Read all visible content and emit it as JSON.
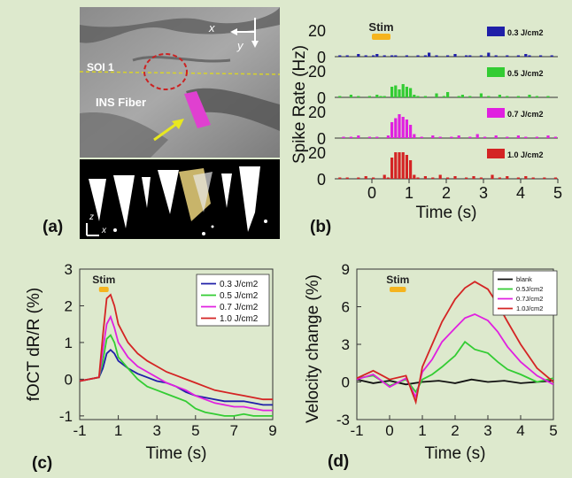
{
  "panels": {
    "a": {
      "label": "(a)",
      "soi_label": "SOI 1",
      "fiber_label": "INS Fiber",
      "axis_x": "x",
      "axis_y": "y",
      "axis_z": "z",
      "axis_x2": "x"
    },
    "b": {
      "label": "(b)"
    },
    "c": {
      "label": "(c)"
    },
    "d": {
      "label": "(d)"
    }
  },
  "colors": {
    "background": "#dde9cd",
    "stim": "#f5b41e",
    "c_series": [
      "#1f1fa8",
      "#33cc33",
      "#e020e0",
      "#d42424"
    ],
    "d_series": [
      "#111111",
      "#33cc33",
      "#e020e0",
      "#d42424"
    ],
    "b_series": [
      "#1f1fa8",
      "#33cc33",
      "#e020e0",
      "#d42424"
    ]
  },
  "chart_data": [
    {
      "id": "b",
      "type": "bar",
      "ylabel": "Spike Rate (Hz)",
      "xlabel": "Time (s)",
      "xlim": [
        -1,
        5
      ],
      "xticks": [
        0,
        1,
        2,
        3,
        4,
        5
      ],
      "stim_label": "Stim",
      "stim": [
        0,
        0.5
      ],
      "bin_width": 0.1,
      "subplots": [
        {
          "name": "0.3 J/cm2",
          "ylim": [
            0,
            20
          ],
          "yticks": [
            0,
            20
          ],
          "values": [
            0,
            1,
            0,
            1,
            0,
            0,
            2,
            0,
            1,
            0,
            1,
            2,
            0,
            1,
            0,
            1,
            1,
            0,
            0,
            1,
            0,
            0,
            1,
            0,
            1,
            3,
            0,
            1,
            0,
            0,
            1,
            0,
            2,
            0,
            0,
            1,
            1,
            0,
            0,
            1,
            0,
            3,
            0,
            1,
            0,
            0,
            1,
            0,
            0,
            1,
            0,
            2,
            1,
            0,
            0,
            1,
            0,
            0,
            1,
            0
          ]
        },
        {
          "name": "0.5 J/cm2",
          "ylim": [
            0,
            20
          ],
          "yticks": [
            0,
            20
          ],
          "values": [
            0,
            1,
            0,
            0,
            2,
            0,
            1,
            0,
            0,
            1,
            0,
            2,
            1,
            1,
            0,
            8,
            9,
            6,
            10,
            8,
            7,
            2,
            1,
            0,
            1,
            0,
            0,
            3,
            0,
            1,
            4,
            0,
            0,
            1,
            2,
            0,
            1,
            0,
            0,
            3,
            0,
            1,
            0,
            0,
            2,
            0,
            1,
            0,
            0,
            1,
            0,
            0,
            2,
            0,
            1,
            0,
            0,
            1,
            0,
            0
          ]
        },
        {
          "name": "0.7 J/cm2",
          "ylim": [
            0,
            20
          ],
          "yticks": [
            0,
            20
          ],
          "values": [
            0,
            0,
            1,
            0,
            1,
            0,
            2,
            0,
            0,
            1,
            0,
            1,
            0,
            0,
            2,
            12,
            15,
            18,
            16,
            14,
            10,
            3,
            0,
            1,
            0,
            0,
            2,
            0,
            1,
            0,
            0,
            1,
            0,
            2,
            0,
            0,
            1,
            0,
            3,
            0,
            1,
            0,
            0,
            2,
            0,
            0,
            1,
            0,
            0,
            2,
            0,
            1,
            0,
            0,
            1,
            0,
            0,
            2,
            0,
            1
          ]
        },
        {
          "name": "1.0 J/cm2",
          "ylim": [
            0,
            20
          ],
          "yticks": [
            0,
            20
          ],
          "values": [
            0,
            1,
            0,
            1,
            0,
            0,
            1,
            0,
            2,
            0,
            1,
            0,
            0,
            3,
            1,
            16,
            20,
            20,
            20,
            18,
            14,
            3,
            1,
            0,
            2,
            0,
            1,
            0,
            3,
            0,
            1,
            0,
            2,
            0,
            0,
            1,
            0,
            2,
            0,
            1,
            0,
            0,
            3,
            0,
            1,
            0,
            2,
            0,
            0,
            1,
            0,
            2,
            0,
            1,
            0,
            0,
            1,
            0,
            0,
            1
          ]
        }
      ]
    },
    {
      "id": "c",
      "type": "line",
      "ylabel": "fOCT dR/R (%)",
      "xlabel": "Time (s)",
      "xlim": [
        -1,
        9
      ],
      "ylim": [
        -1.1,
        3
      ],
      "xticks": [
        -1,
        1,
        3,
        5,
        7,
        9
      ],
      "yticks": [
        -1,
        0,
        1,
        2,
        3
      ],
      "stim_label": "Stim",
      "stim": [
        0,
        0.5
      ],
      "legend": "top-right",
      "series": [
        {
          "name": "0.3 J/cm2",
          "x": [
            -1,
            -0.5,
            0,
            0.2,
            0.4,
            0.6,
            0.8,
            1,
            1.5,
            2,
            2.5,
            3,
            3.5,
            4,
            4.5,
            5,
            5.5,
            6,
            6.5,
            7,
            7.5,
            8,
            8.5,
            9
          ],
          "y": [
            -0.05,
            0,
            0.05,
            0.3,
            0.7,
            0.8,
            0.7,
            0.5,
            0.3,
            0.15,
            0.05,
            -0.05,
            -0.1,
            -0.2,
            -0.35,
            -0.45,
            -0.5,
            -0.55,
            -0.6,
            -0.6,
            -0.6,
            -0.65,
            -0.7,
            -0.7
          ]
        },
        {
          "name": "0.5 J/cm2",
          "x": [
            -1,
            -0.5,
            0,
            0.2,
            0.4,
            0.6,
            0.8,
            1,
            1.5,
            2,
            2.5,
            3,
            3.5,
            4,
            4.5,
            5,
            5.5,
            6,
            6.5,
            7,
            7.5,
            8,
            8.5,
            9
          ],
          "y": [
            -0.05,
            0,
            0.05,
            0.5,
            1.1,
            1.2,
            1.0,
            0.6,
            0.3,
            0.0,
            -0.2,
            -0.3,
            -0.4,
            -0.5,
            -0.6,
            -0.8,
            -0.9,
            -0.95,
            -1.0,
            -1.0,
            -0.95,
            -1.0,
            -1.0,
            -1.0
          ]
        },
        {
          "name": "0.7 J/cm2",
          "x": [
            -1,
            -0.5,
            0,
            0.2,
            0.4,
            0.6,
            0.8,
            1,
            1.5,
            2,
            2.5,
            3,
            3.5,
            4,
            4.5,
            5,
            5.5,
            6,
            6.5,
            7,
            7.5,
            8,
            8.5,
            9
          ],
          "y": [
            -0.05,
            0,
            0.05,
            0.8,
            1.5,
            1.7,
            1.4,
            1.0,
            0.6,
            0.35,
            0.2,
            0.05,
            -0.1,
            -0.2,
            -0.3,
            -0.45,
            -0.55,
            -0.65,
            -0.7,
            -0.75,
            -0.75,
            -0.8,
            -0.85,
            -0.85
          ]
        },
        {
          "name": "1.0 J/cm2",
          "x": [
            -1,
            -0.5,
            0,
            0.2,
            0.4,
            0.6,
            0.8,
            1,
            1.5,
            2,
            2.5,
            3,
            3.5,
            4,
            4.5,
            5,
            5.5,
            6,
            6.5,
            7,
            7.5,
            8,
            8.5,
            9
          ],
          "y": [
            -0.05,
            0,
            0.05,
            1.2,
            2.2,
            2.3,
            2.0,
            1.5,
            1.0,
            0.7,
            0.5,
            0.35,
            0.2,
            0.1,
            0.0,
            -0.1,
            -0.2,
            -0.3,
            -0.35,
            -0.4,
            -0.45,
            -0.5,
            -0.55,
            -0.55
          ]
        }
      ]
    },
    {
      "id": "d",
      "type": "line",
      "ylabel": "Velocity change (%)",
      "xlabel": "Time (s)",
      "xlim": [
        -1,
        5
      ],
      "ylim": [
        -3,
        9
      ],
      "xticks": [
        -1,
        0,
        1,
        2,
        3,
        4,
        5
      ],
      "yticks": [
        -3,
        0,
        3,
        6,
        9
      ],
      "stim_label": "Stim",
      "stim": [
        0,
        0.5
      ],
      "legend": "top-right",
      "series": [
        {
          "name": "blank",
          "x": [
            -1,
            -0.5,
            0,
            0.5,
            1,
            1.5,
            2,
            2.5,
            3,
            3.5,
            4,
            4.5,
            5
          ],
          "y": [
            0.2,
            -0.1,
            0.1,
            -0.2,
            0,
            0.1,
            -0.1,
            0.2,
            0,
            0.1,
            -0.1,
            0,
            0.1
          ]
        },
        {
          "name": "0.5J/cm2",
          "x": [
            -1,
            -0.5,
            0,
            0.5,
            0.8,
            1,
            1.3,
            1.6,
            2,
            2.3,
            2.6,
            3,
            3.3,
            3.6,
            4,
            4.5,
            5
          ],
          "y": [
            0.3,
            0.5,
            -0.3,
            0.2,
            -0.8,
            0.2,
            0.6,
            1.2,
            2.1,
            3.2,
            2.6,
            2.3,
            1.6,
            1.0,
            0.6,
            0.0,
            0.3
          ]
        },
        {
          "name": "0.7J/cm2",
          "x": [
            -1,
            -0.5,
            0,
            0.5,
            0.8,
            1,
            1.3,
            1.6,
            2,
            2.3,
            2.6,
            3,
            3.3,
            3.6,
            4,
            4.5,
            5
          ],
          "y": [
            0.2,
            0.6,
            -0.4,
            0.3,
            -1.2,
            0.8,
            1.8,
            3.2,
            4.3,
            5.1,
            5.4,
            4.9,
            4.0,
            2.8,
            1.6,
            0.5,
            -0.2
          ]
        },
        {
          "name": "1.0J/cm2",
          "x": [
            -1,
            -0.5,
            0,
            0.5,
            0.8,
            1,
            1.3,
            1.6,
            2,
            2.3,
            2.6,
            3,
            3.3,
            3.6,
            4,
            4.5,
            5
          ],
          "y": [
            0.3,
            0.9,
            0.2,
            0.5,
            -1.6,
            1.2,
            3.0,
            4.8,
            6.6,
            7.5,
            8.0,
            7.4,
            6.2,
            4.8,
            3.0,
            1.1,
            0.0
          ]
        }
      ]
    }
  ]
}
